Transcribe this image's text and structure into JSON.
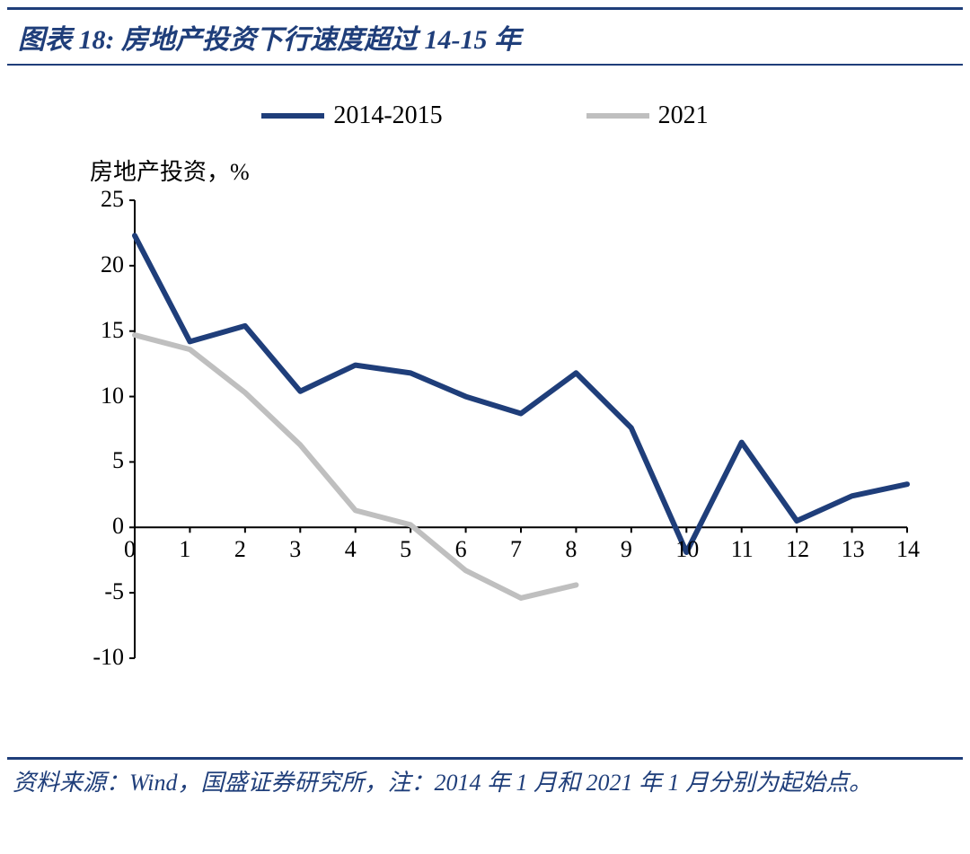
{
  "title": "图表 18:  房地产投资下行速度超过 14-15 年",
  "ylabel": "房地产投资，%",
  "footer": "资料来源：Wind，国盛证券研究所，注：2014 年 1 月和 2021 年 1 月分别为起始点。",
  "legend": {
    "s1": "2014-2015",
    "s2": "2021"
  },
  "chart": {
    "type": "line",
    "background_color": "#ffffff",
    "axis_color": "#000000",
    "tick_fontsize": 26,
    "xlim": [
      0,
      14
    ],
    "ylim": [
      -10,
      25
    ],
    "yticks": [
      -10,
      -5,
      0,
      5,
      10,
      15,
      20,
      25
    ],
    "xticks": [
      0,
      1,
      2,
      3,
      4,
      5,
      6,
      7,
      8,
      9,
      10,
      11,
      12,
      13,
      14
    ],
    "series": [
      {
        "name": "2014-2015",
        "color": "#1f3e7a",
        "width": 6,
        "x": [
          0,
          1,
          2,
          3,
          4,
          5,
          6,
          7,
          8,
          9,
          10,
          11,
          12,
          13,
          14
        ],
        "y": [
          22.3,
          14.2,
          15.4,
          10.4,
          12.4,
          11.8,
          10.0,
          8.7,
          11.8,
          7.6,
          -1.9,
          6.5,
          0.5,
          2.4,
          3.3
        ]
      },
      {
        "name": "2021",
        "color": "#bfbfbf",
        "width": 6,
        "x": [
          0,
          1,
          2,
          3,
          4,
          5,
          6,
          7,
          8
        ],
        "y": [
          14.7,
          13.6,
          10.3,
          6.3,
          1.3,
          0.2,
          -3.3,
          -5.4,
          -4.4
        ]
      }
    ]
  }
}
